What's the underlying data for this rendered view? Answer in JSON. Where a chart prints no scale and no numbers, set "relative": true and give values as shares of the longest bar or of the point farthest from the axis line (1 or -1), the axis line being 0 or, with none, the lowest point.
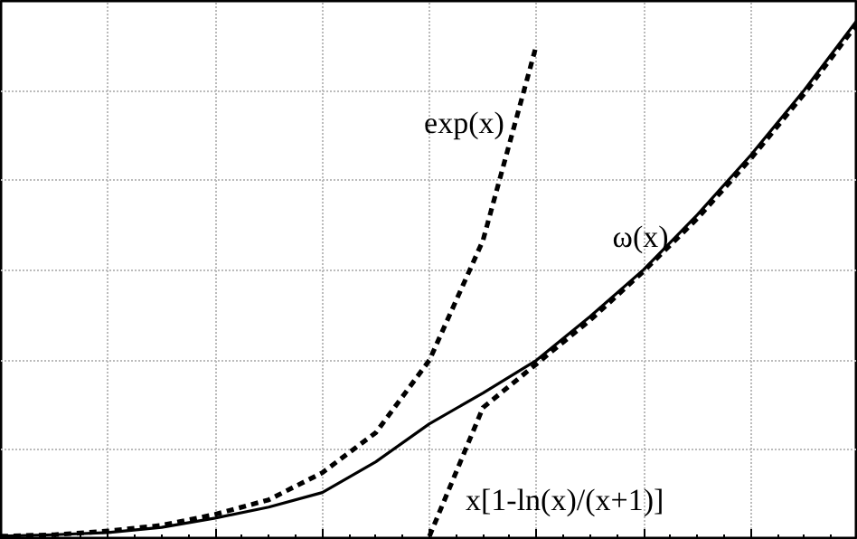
{
  "chart_data": {
    "type": "line",
    "relative": true,
    "grid": true,
    "categories": [
      null,
      null,
      null,
      null,
      null,
      null,
      null,
      null,
      null,
      null,
      null,
      null,
      null,
      null,
      null,
      null,
      null
    ],
    "series": [
      {
        "name": "ω(x)",
        "color": "#000000",
        "line_style": "solid",
        "values": [
          0.007,
          0.01,
          0.014,
          0.024,
          0.042,
          0.063,
          0.091,
          0.15,
          0.223,
          0.282,
          0.345,
          0.429,
          0.519,
          0.624,
          0.739,
          0.864,
          1.0
        ]
      },
      {
        "name": "exp(x)",
        "color": "#000000",
        "line_style": "dashed",
        "values": [
          0.007,
          0.01,
          0.017,
          0.028,
          0.049,
          0.077,
          0.129,
          0.206,
          0.345,
          0.575,
          0.951,
          null,
          null,
          null,
          null,
          null,
          null
        ]
      },
      {
        "name": "x[1-ln(x)/(x+1)]",
        "color": "#000000",
        "line_style": "dashed",
        "values": [
          null,
          null,
          null,
          null,
          null,
          null,
          null,
          null,
          0.007,
          0.254,
          0.338,
          0.422,
          0.516,
          0.617,
          0.732,
          0.857,
          0.993
        ]
      }
    ]
  }
}
